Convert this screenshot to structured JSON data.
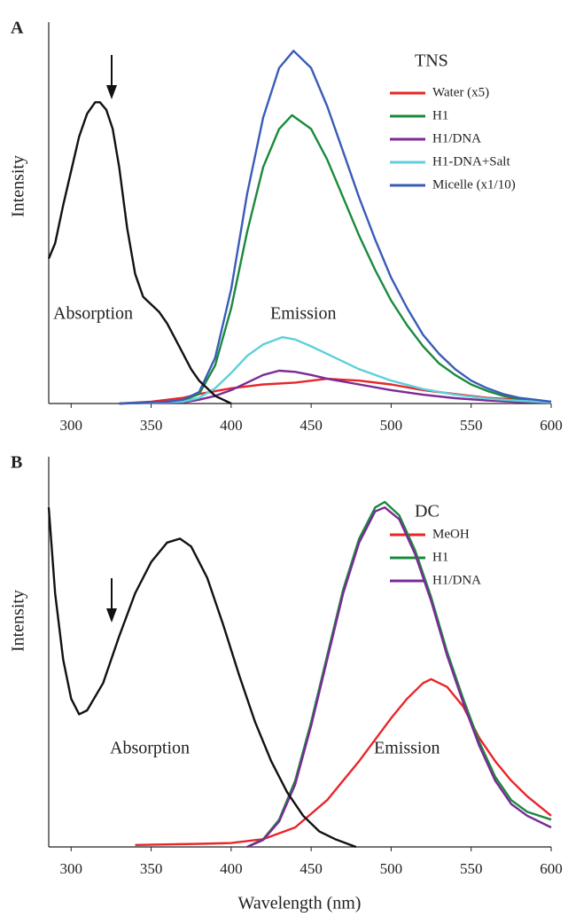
{
  "chart_data": [
    {
      "type": "line",
      "panel": "A",
      "title": "TNS",
      "ylabel": "Intensity",
      "annotations": [
        "Absorption",
        "Emission"
      ],
      "xlim": [
        286,
        600
      ],
      "xticks": [
        300,
        350,
        400,
        450,
        500,
        550,
        600
      ],
      "ylim": [
        0,
        100
      ],
      "series": [
        {
          "name": "Water (x5)",
          "color": "#e8262a",
          "x": [
            330,
            350,
            370,
            380,
            400,
            420,
            440,
            460,
            480,
            500,
            520,
            540,
            560,
            580,
            600
          ],
          "values": [
            0,
            0.5,
            1.5,
            2.5,
            4,
            5,
            5.5,
            6.5,
            6,
            5,
            3.5,
            2.5,
            1.5,
            1,
            0.5
          ]
        },
        {
          "name": "H1",
          "color": "#1a8a3c",
          "x": [
            330,
            360,
            370,
            380,
            390,
            400,
            410,
            420,
            430,
            438,
            450,
            460,
            470,
            480,
            490,
            500,
            510,
            520,
            530,
            540,
            550,
            560,
            570,
            580,
            590,
            600
          ],
          "values": [
            0,
            0.4,
            0.8,
            2.5,
            10,
            25,
            45,
            62,
            72,
            75.6,
            72,
            64,
            54,
            44,
            35,
            27,
            20.5,
            15,
            10.5,
            7.5,
            5,
            3.3,
            2,
            1.2,
            0.8,
            0.4
          ]
        },
        {
          "name": "H1/DNA",
          "color": "#7a2a96",
          "x": [
            330,
            370,
            380,
            390,
            400,
            410,
            420,
            430,
            440,
            450,
            460,
            480,
            500,
            520,
            540,
            560,
            580,
            600
          ],
          "values": [
            0,
            0.3,
            1,
            2,
            3.5,
            5.5,
            7.5,
            8.6,
            8.3,
            7.5,
            6.5,
            5,
            3.5,
            2.3,
            1.4,
            0.8,
            0.4,
            0.2
          ]
        },
        {
          "name": "H1-DNA+Salt",
          "color": "#5fcfdc",
          "x": [
            330,
            370,
            380,
            390,
            400,
            410,
            420,
            432,
            440,
            450,
            460,
            480,
            500,
            520,
            540,
            560,
            580,
            600
          ],
          "values": [
            0,
            0.5,
            1.5,
            4,
            8,
            12.5,
            15.5,
            17.4,
            16.8,
            15,
            13,
            9,
            6,
            3.8,
            2.3,
            1.3,
            0.7,
            0.3
          ]
        },
        {
          "name": "Micelle (x1/10)",
          "color": "#3a5cb8",
          "x": [
            330,
            360,
            370,
            380,
            390,
            400,
            410,
            420,
            430,
            439,
            450,
            460,
            470,
            480,
            490,
            500,
            510,
            520,
            530,
            540,
            550,
            560,
            570,
            580,
            590,
            600
          ],
          "values": [
            0,
            0.5,
            1,
            3,
            12,
            30,
            55,
            75,
            88,
            92.5,
            88,
            78,
            66,
            54,
            43,
            33,
            25,
            18,
            13,
            9,
            6,
            4,
            2.5,
            1.5,
            1,
            0.5
          ]
        },
        {
          "color": "#111111",
          "x": [
            286,
            290,
            295,
            300,
            305,
            310,
            315,
            318,
            322,
            326,
            330,
            335,
            340,
            345,
            350,
            355,
            360,
            365,
            370,
            375,
            380,
            385,
            390,
            395,
            400
          ],
          "values": [
            38,
            42,
            52,
            61,
            70,
            76,
            79,
            79,
            77,
            72,
            62,
            46,
            34,
            28,
            26,
            24,
            21,
            17,
            13,
            9,
            6,
            4,
            2,
            1,
            0
          ]
        }
      ]
    },
    {
      "type": "line",
      "panel": "B",
      "title": "DC",
      "ylabel": "Intensity",
      "xlabel": "Wavelength (nm)",
      "annotations": [
        "Absorption",
        "Emission"
      ],
      "xlim": [
        286,
        600
      ],
      "xticks": [
        300,
        350,
        400,
        450,
        500,
        550,
        600
      ],
      "ylim": [
        0,
        100
      ],
      "series": [
        {
          "name": "MeOH",
          "color": "#e8262a",
          "x": [
            340,
            380,
            400,
            420,
            440,
            460,
            480,
            500,
            510,
            520,
            525,
            535,
            545,
            555,
            565,
            575,
            585,
            600
          ],
          "values": [
            0.5,
            0.8,
            1,
            2,
            5,
            12,
            22,
            33,
            38,
            42,
            43,
            41,
            36,
            28,
            22,
            17,
            13,
            8
          ]
        },
        {
          "name": "H1",
          "color": "#1a8a3c",
          "x": [
            410,
            420,
            430,
            440,
            450,
            460,
            470,
            480,
            490,
            496,
            505,
            515,
            525,
            535,
            545,
            555,
            565,
            575,
            585,
            600
          ],
          "values": [
            0,
            2,
            7,
            17,
            32,
            49,
            66,
            79,
            87,
            88.4,
            85,
            76,
            64,
            50,
            38,
            27,
            18,
            12,
            9,
            7
          ]
        },
        {
          "name": "H1/DNA",
          "color": "#7a2a96",
          "x": [
            410,
            420,
            430,
            440,
            450,
            460,
            470,
            480,
            490,
            496,
            505,
            515,
            525,
            535,
            545,
            555,
            565,
            575,
            585,
            600
          ],
          "values": [
            0,
            1.8,
            6.5,
            16,
            31,
            48,
            65,
            78,
            86,
            87,
            84,
            75,
            63,
            49,
            37,
            26,
            17,
            11,
            8,
            5
          ]
        },
        {
          "color": "#111111",
          "x": [
            286,
            290,
            295,
            300,
            305,
            310,
            320,
            330,
            340,
            350,
            360,
            368,
            375,
            385,
            395,
            405,
            415,
            425,
            435,
            445,
            455,
            465,
            478
          ],
          "values": [
            87,
            65,
            48,
            38,
            34,
            35,
            42,
            54,
            65,
            73,
            78,
            79,
            77,
            69,
            57,
            44,
            32,
            22,
            14,
            8,
            4,
            2,
            0
          ]
        }
      ]
    }
  ]
}
